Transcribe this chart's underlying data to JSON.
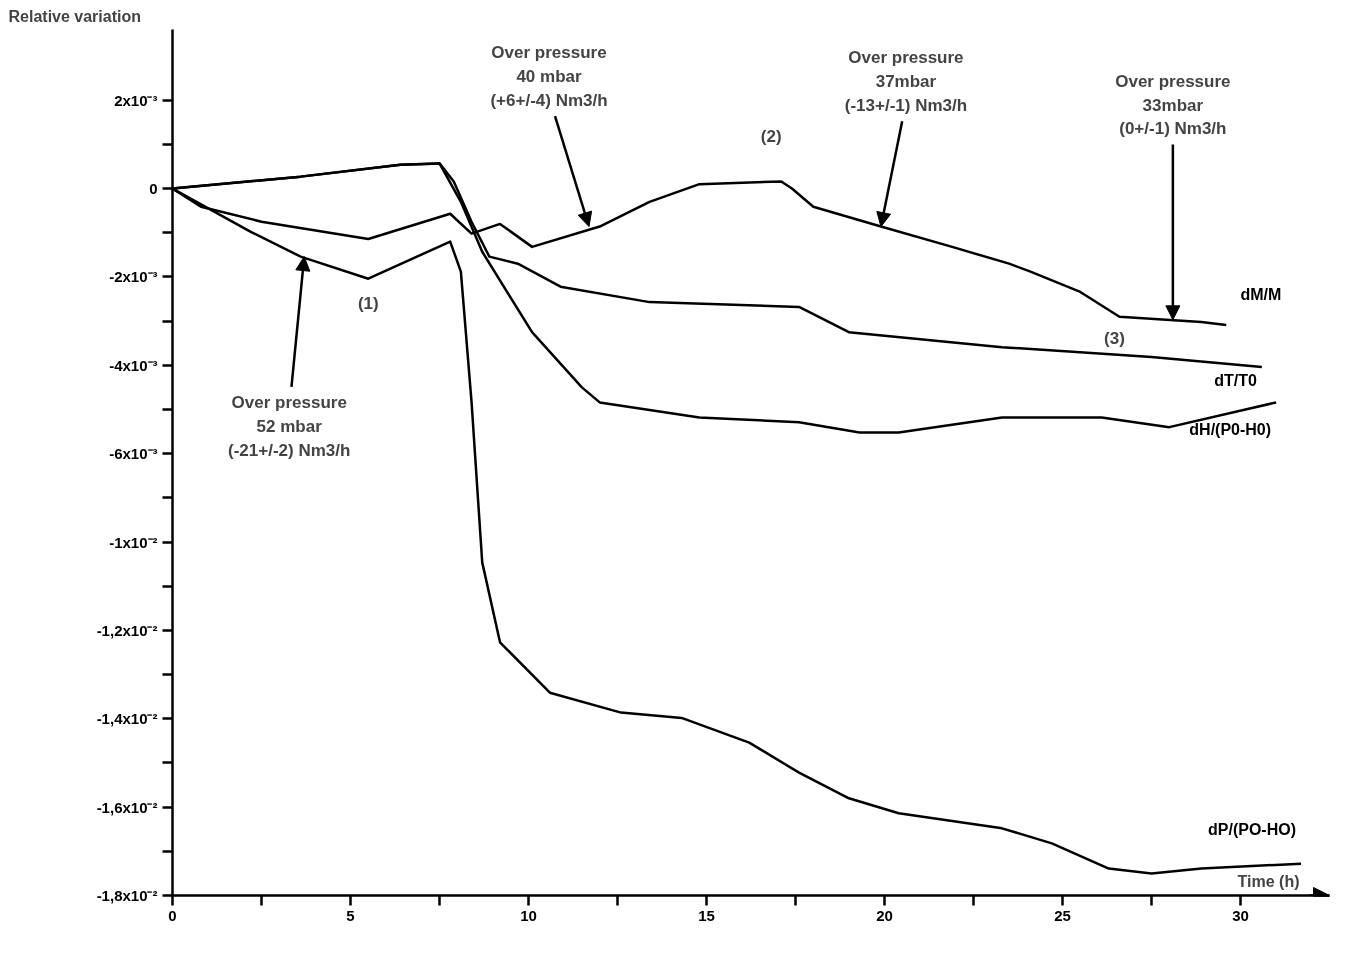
{
  "chart_data": {
    "type": "line",
    "xlabel": "Time (h)",
    "ylabel": "Relative variation",
    "xlim": [
      0,
      32.5
    ],
    "ylim": [
      -0.016,
      0.0036
    ],
    "xticks": [
      0,
      {
        "value": 2.5,
        "label": null
      },
      5,
      {
        "value": 7.5,
        "label": null
      },
      10,
      {
        "value": 12.5,
        "label": null
      },
      15,
      {
        "value": 17.5,
        "label": null
      },
      20,
      {
        "value": 22.5,
        "label": null
      },
      25,
      {
        "value": 27.5,
        "label": null
      },
      30
    ],
    "yticks": [
      {
        "value": 0.002,
        "label": "2x10⁻³"
      },
      {
        "value": 0.001,
        "label": null
      },
      0,
      {
        "value": -0.001,
        "label": null
      },
      {
        "value": -0.002,
        "label": "-2x10⁻³"
      },
      {
        "value": -0.003,
        "label": null
      },
      {
        "value": -0.004,
        "label": "-4x10⁻³"
      },
      {
        "value": -0.005,
        "label": null
      },
      {
        "value": -0.006,
        "label": "-6x10⁻³"
      },
      {
        "value": -0.007,
        "label": null
      },
      {
        "value": -0.008,
        "label": "-1x10⁻²"
      },
      {
        "value": -0.009,
        "label": null
      },
      {
        "value": -0.01,
        "label": "-1,2x10⁻²"
      },
      {
        "value": -0.011,
        "label": null
      },
      {
        "value": -0.012,
        "label": "-1,4x10⁻²"
      },
      {
        "value": -0.013,
        "label": null
      },
      {
        "value": -0.014,
        "label": "-1,6x10⁻²"
      },
      {
        "value": -0.015,
        "label": null
      },
      {
        "value": -0.016,
        "label": "-1,8x10⁻²"
      }
    ],
    "grid": false,
    "legend": false,
    "marker": "none",
    "line_style": "solid",
    "series": [
      {
        "name": "dM/M",
        "color": "#000000",
        "x": [
          0,
          0.8,
          2.5,
          5.5,
          7.8,
          8.4,
          9.2,
          10.1,
          12.0,
          13.4,
          14.8,
          17.1,
          17.4,
          18.0,
          19.9,
          21.9,
          23.5,
          24.1,
          25.5,
          26.6,
          28.9,
          29.6
        ],
        "values": [
          0,
          -0.00041,
          -0.00075,
          -0.00114,
          -0.00057,
          -0.00102,
          -0.0008,
          -0.00132,
          -0.00086,
          -0.0003,
          0.0001,
          0.00016,
          0,
          -0.00041,
          -0.00086,
          -0.00132,
          -0.0017,
          -0.00188,
          -0.00234,
          -0.0029,
          -0.00302,
          -0.00309
        ]
      },
      {
        "name": "dT/T0",
        "color": "#000000",
        "x": [
          0,
          3.6,
          6.4,
          7.5,
          7.9,
          8.4,
          8.9,
          9.7,
          10.9,
          13.4,
          17.6,
          19.0,
          23.3,
          27.5,
          30.6
        ],
        "values": [
          0,
          0.00027,
          0.00054,
          0.00057,
          0.00016,
          -0.00075,
          -0.00154,
          -0.0017,
          -0.00222,
          -0.00257,
          -0.00268,
          -0.00325,
          -0.00359,
          -0.00381,
          -0.00404
        ]
      },
      {
        "name": "dH/(P0-H0)",
        "color": "#000000",
        "x": [
          0,
          3.6,
          6.4,
          7.5,
          8.1,
          8.7,
          10.1,
          11.5,
          12.0,
          14.8,
          17.6,
          19.3,
          20.4,
          23.3,
          26.1,
          28.0,
          31.0
        ],
        "values": [
          0,
          0.00027,
          0.00054,
          0.00057,
          -0.0003,
          -0.00143,
          -0.00325,
          -0.0045,
          -0.00484,
          -0.00518,
          -0.00529,
          -0.00552,
          -0.00552,
          -0.00518,
          -0.00518,
          -0.0054,
          -0.00484
        ]
      },
      {
        "name": "dP/(PO-HO)",
        "color": "#000000",
        "x": [
          0,
          2.2,
          3.6,
          5.5,
          7.8,
          8.1,
          8.4,
          8.7,
          9.2,
          10.6,
          12.6,
          14.3,
          16.2,
          17.6,
          19.0,
          20.4,
          23.3,
          24.7,
          26.3,
          27.5,
          28.9,
          31.7
        ],
        "values": [
          0,
          -0.00098,
          -0.00154,
          -0.00204,
          -0.0012,
          -0.00188,
          -0.00483,
          -0.00846,
          -0.01027,
          -0.01141,
          -0.01186,
          -0.01198,
          -0.01254,
          -0.01322,
          -0.0138,
          -0.01414,
          -0.01448,
          -0.01482,
          -0.01539,
          -0.0155,
          -0.01539,
          -0.01528
        ]
      }
    ],
    "annotations": [
      {
        "text": "Over pressure\n52 mbar\n(-21+/-2) Nm3/h",
        "x": 3.7,
        "y": -0.00154
      },
      {
        "text": "Over pressure\n40 mbar\n(+6+/-4) Nm3/h",
        "x": 11.7,
        "y": -0.00086
      },
      {
        "text": "Over pressure\n37mbar\n(-13+/-1) Nm3/h",
        "x": 19.9,
        "y": -0.00086
      },
      {
        "text": "Over pressure\n33mbar\n(0+/-1) Nm3/h",
        "x": 28.1,
        "y": -0.00297
      },
      {
        "text": "(1)",
        "x": 5.5,
        "y": -0.00204
      },
      {
        "text": "(2)",
        "x": 17.1,
        "y": 0.00016
      },
      {
        "text": "(3)",
        "x": 26.6,
        "y": -0.0029
      }
    ]
  }
}
